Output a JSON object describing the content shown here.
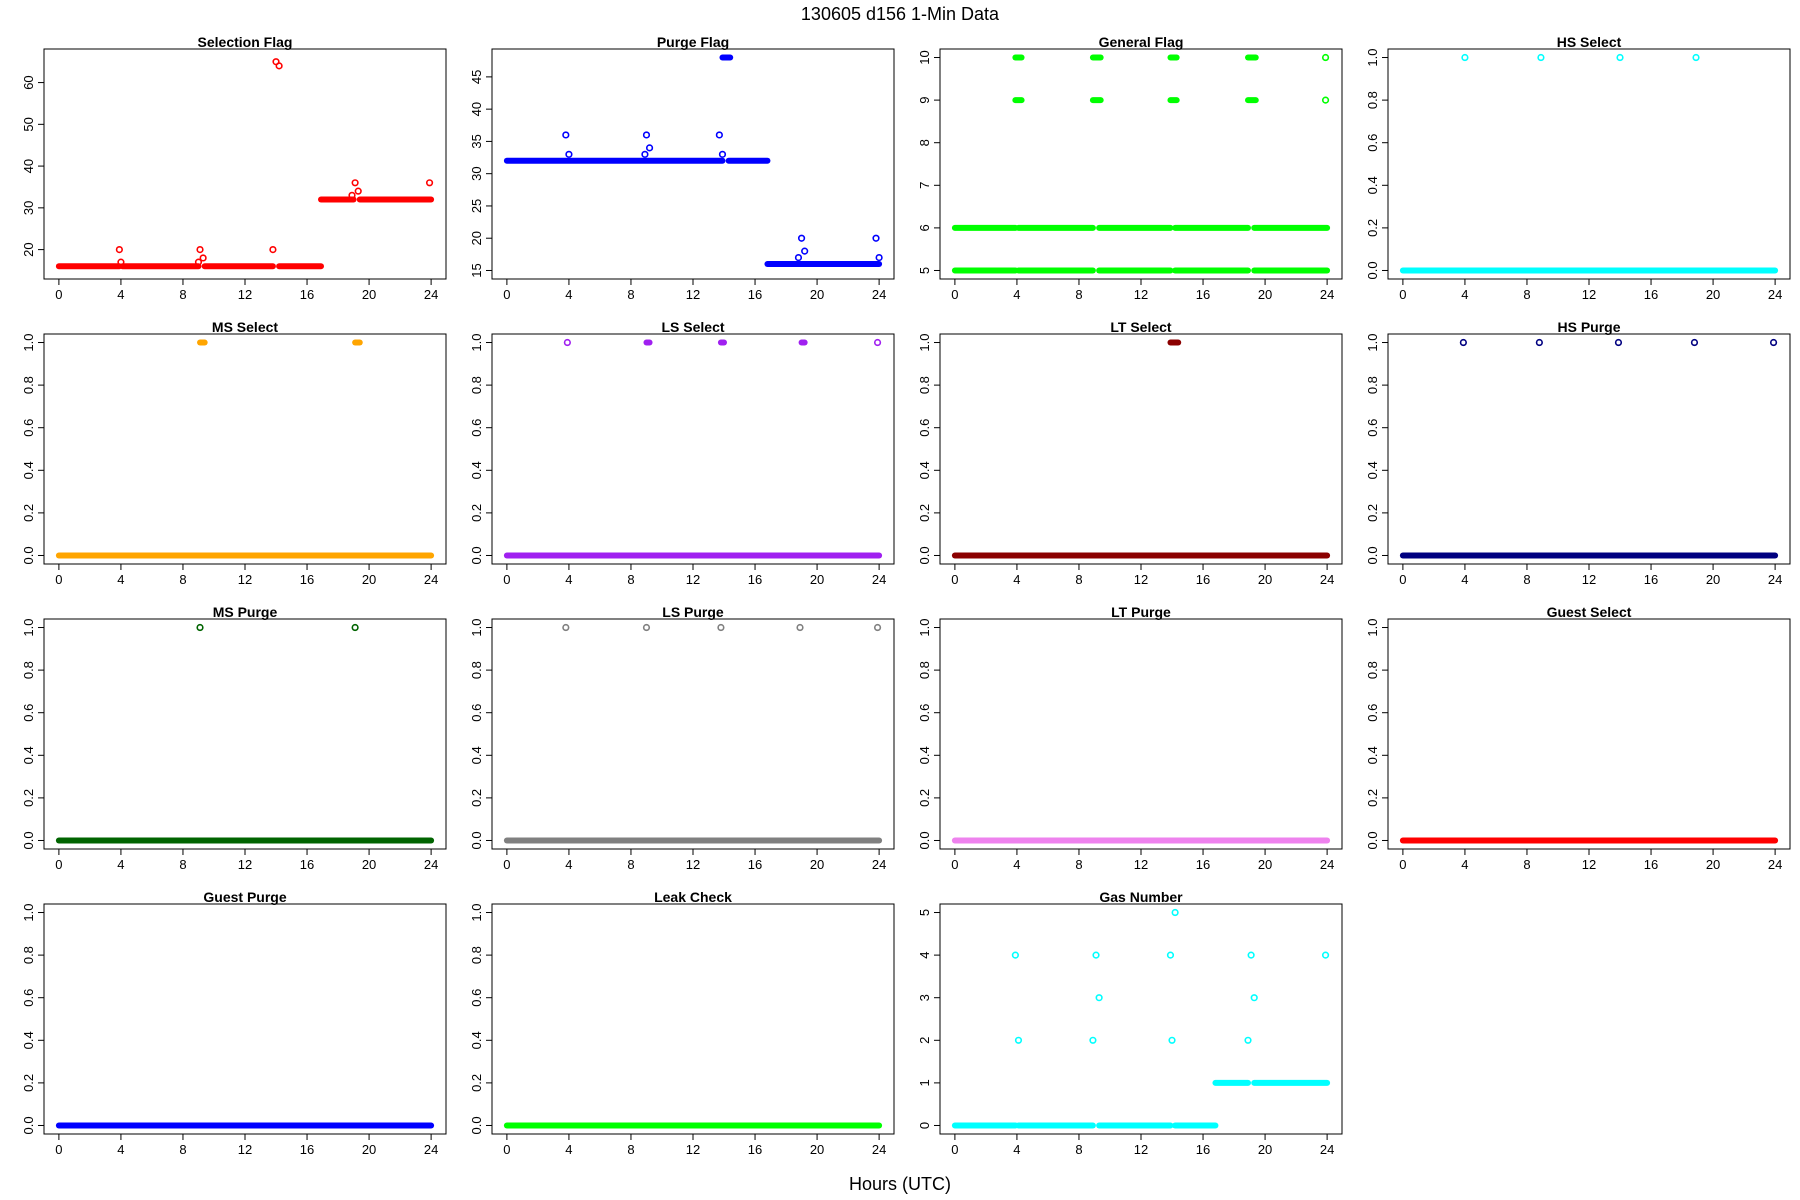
{
  "figure": {
    "title": "130605   d156   1-Min Data",
    "xlabel": "Hours (UTC)"
  },
  "chart_data": [
    {
      "type": "scatter",
      "title": "Selection Flag",
      "color": "#ff0000",
      "xlim": [
        0,
        24
      ],
      "ylim": [
        15,
        66
      ],
      "xticks": [
        0,
        4,
        8,
        12,
        16,
        20,
        24
      ],
      "yticks": [
        20,
        30,
        40,
        50,
        60
      ],
      "runs": [
        {
          "x0": 0,
          "x1": 3.9,
          "y": 16
        },
        {
          "x0": 4.1,
          "x1": 9.0,
          "y": 16
        },
        {
          "x0": 9.4,
          "x1": 13.8,
          "y": 16
        },
        {
          "x0": 14.2,
          "x1": 16.9,
          "y": 16
        },
        {
          "x0": 16.9,
          "x1": 19.0,
          "y": 32
        },
        {
          "x0": 19.4,
          "x1": 24,
          "y": 32
        }
      ],
      "points": [
        {
          "x": 3.9,
          "y": 20
        },
        {
          "x": 4.0,
          "y": 17
        },
        {
          "x": 9.0,
          "y": 17
        },
        {
          "x": 9.1,
          "y": 20
        },
        {
          "x": 9.3,
          "y": 18
        },
        {
          "x": 13.8,
          "y": 20
        },
        {
          "x": 14.0,
          "y": 65
        },
        {
          "x": 14.2,
          "y": 64
        },
        {
          "x": 18.9,
          "y": 33
        },
        {
          "x": 19.1,
          "y": 36
        },
        {
          "x": 19.3,
          "y": 34
        },
        {
          "x": 23.9,
          "y": 36
        }
      ]
    },
    {
      "type": "scatter",
      "title": "Purge Flag",
      "color": "#0000ff",
      "xlim": [
        0,
        24
      ],
      "ylim": [
        15,
        48
      ],
      "xticks": [
        0,
        4,
        8,
        12,
        16,
        20,
        24
      ],
      "yticks": [
        15,
        20,
        25,
        30,
        35,
        40,
        45
      ],
      "runs": [
        {
          "x0": 0,
          "x1": 13.9,
          "y": 32
        },
        {
          "x0": 14.3,
          "x1": 16.8,
          "y": 32
        },
        {
          "x0": 16.8,
          "x1": 24,
          "y": 16
        },
        {
          "x0": 13.9,
          "x1": 14.4,
          "y": 48
        }
      ],
      "points": [
        {
          "x": 3.8,
          "y": 36
        },
        {
          "x": 4.0,
          "y": 33
        },
        {
          "x": 8.9,
          "y": 33
        },
        {
          "x": 9.0,
          "y": 36
        },
        {
          "x": 9.2,
          "y": 34
        },
        {
          "x": 13.7,
          "y": 36
        },
        {
          "x": 13.9,
          "y": 33
        },
        {
          "x": 18.8,
          "y": 17
        },
        {
          "x": 19.0,
          "y": 20
        },
        {
          "x": 19.2,
          "y": 18
        },
        {
          "x": 23.8,
          "y": 20
        },
        {
          "x": 24.0,
          "y": 17
        }
      ]
    },
    {
      "type": "scatter",
      "title": "General Flag",
      "color": "#00ff00",
      "xlim": [
        0,
        24
      ],
      "ylim": [
        5,
        10
      ],
      "xticks": [
        0,
        4,
        8,
        12,
        16,
        20,
        24
      ],
      "yticks": [
        5,
        6,
        7,
        8,
        9,
        10
      ],
      "runs": [
        {
          "x0": 0,
          "x1": 3.9,
          "y": 6
        },
        {
          "x0": 4.1,
          "x1": 8.9,
          "y": 6
        },
        {
          "x0": 9.3,
          "x1": 13.9,
          "y": 6
        },
        {
          "x0": 14.2,
          "x1": 18.9,
          "y": 6
        },
        {
          "x0": 19.3,
          "x1": 24,
          "y": 6
        },
        {
          "x0": 0,
          "x1": 3.9,
          "y": 5
        },
        {
          "x0": 4.1,
          "x1": 8.9,
          "y": 5
        },
        {
          "x0": 9.3,
          "x1": 13.9,
          "y": 5
        },
        {
          "x0": 14.2,
          "x1": 18.9,
          "y": 5
        },
        {
          "x0": 19.3,
          "x1": 24,
          "y": 5
        },
        {
          "x0": 3.9,
          "x1": 4.3,
          "y": 10
        },
        {
          "x0": 8.9,
          "x1": 9.4,
          "y": 10
        },
        {
          "x0": 13.9,
          "x1": 14.3,
          "y": 10
        },
        {
          "x0": 18.9,
          "x1": 19.4,
          "y": 10
        },
        {
          "x0": 3.9,
          "x1": 4.3,
          "y": 9
        },
        {
          "x0": 8.9,
          "x1": 9.4,
          "y": 9
        },
        {
          "x0": 13.9,
          "x1": 14.3,
          "y": 9
        },
        {
          "x0": 18.9,
          "x1": 19.4,
          "y": 9
        }
      ],
      "points": [
        {
          "x": 23.9,
          "y": 10
        },
        {
          "x": 23.9,
          "y": 9
        }
      ]
    },
    {
      "type": "scatter",
      "title": "HS Select",
      "color": "#00ffff",
      "xlim": [
        0,
        24
      ],
      "ylim": [
        0,
        1
      ],
      "xticks": [
        0,
        4,
        8,
        12,
        16,
        20,
        24
      ],
      "yticks": [
        0.0,
        0.2,
        0.4,
        0.6,
        0.8,
        1.0
      ],
      "runs": [
        {
          "x0": 0,
          "x1": 24,
          "y": 0
        }
      ],
      "points": [
        {
          "x": 4.0,
          "y": 1
        },
        {
          "x": 8.9,
          "y": 1
        },
        {
          "x": 14.0,
          "y": 1
        },
        {
          "x": 18.9,
          "y": 1
        }
      ]
    },
    {
      "type": "scatter",
      "title": "MS Select",
      "color": "#ffa500",
      "xlim": [
        0,
        24
      ],
      "ylim": [
        0,
        1
      ],
      "xticks": [
        0,
        4,
        8,
        12,
        16,
        20,
        24
      ],
      "yticks": [
        0.0,
        0.2,
        0.4,
        0.6,
        0.8,
        1.0
      ],
      "runs": [
        {
          "x0": 0,
          "x1": 24,
          "y": 0
        },
        {
          "x0": 9.1,
          "x1": 9.4,
          "y": 1
        },
        {
          "x0": 19.1,
          "x1": 19.4,
          "y": 1
        }
      ],
      "points": []
    },
    {
      "type": "scatter",
      "title": "LS Select",
      "color": "#a020f0",
      "xlim": [
        0,
        24
      ],
      "ylim": [
        0,
        1
      ],
      "xticks": [
        0,
        4,
        8,
        12,
        16,
        20,
        24
      ],
      "yticks": [
        0.0,
        0.2,
        0.4,
        0.6,
        0.8,
        1.0
      ],
      "runs": [
        {
          "x0": 0,
          "x1": 24,
          "y": 0
        },
        {
          "x0": 9.0,
          "x1": 9.2,
          "y": 1
        },
        {
          "x0": 13.8,
          "x1": 14.0,
          "y": 1
        },
        {
          "x0": 19.0,
          "x1": 19.2,
          "y": 1
        }
      ],
      "points": [
        {
          "x": 3.9,
          "y": 1
        },
        {
          "x": 23.9,
          "y": 1
        }
      ]
    },
    {
      "type": "scatter",
      "title": "LT Select",
      "color": "#8b0000",
      "xlim": [
        0,
        24
      ],
      "ylim": [
        0,
        1
      ],
      "xticks": [
        0,
        4,
        8,
        12,
        16,
        20,
        24
      ],
      "yticks": [
        0.0,
        0.2,
        0.4,
        0.6,
        0.8,
        1.0
      ],
      "runs": [
        {
          "x0": 0,
          "x1": 24,
          "y": 0
        },
        {
          "x0": 13.9,
          "x1": 14.4,
          "y": 1
        }
      ],
      "points": []
    },
    {
      "type": "scatter",
      "title": "HS Purge",
      "color": "#000080",
      "xlim": [
        0,
        24
      ],
      "ylim": [
        0,
        1
      ],
      "xticks": [
        0,
        4,
        8,
        12,
        16,
        20,
        24
      ],
      "yticks": [
        0.0,
        0.2,
        0.4,
        0.6,
        0.8,
        1.0
      ],
      "runs": [
        {
          "x0": 0,
          "x1": 24,
          "y": 0
        }
      ],
      "points": [
        {
          "x": 3.9,
          "y": 1
        },
        {
          "x": 8.8,
          "y": 1
        },
        {
          "x": 13.9,
          "y": 1
        },
        {
          "x": 18.8,
          "y": 1
        },
        {
          "x": 23.9,
          "y": 1
        }
      ]
    },
    {
      "type": "scatter",
      "title": "MS Purge",
      "color": "#006400",
      "xlim": [
        0,
        24
      ],
      "ylim": [
        0,
        1
      ],
      "xticks": [
        0,
        4,
        8,
        12,
        16,
        20,
        24
      ],
      "yticks": [
        0.0,
        0.2,
        0.4,
        0.6,
        0.8,
        1.0
      ],
      "runs": [
        {
          "x0": 0,
          "x1": 24,
          "y": 0
        }
      ],
      "points": [
        {
          "x": 9.1,
          "y": 1
        },
        {
          "x": 19.1,
          "y": 1
        }
      ]
    },
    {
      "type": "scatter",
      "title": "LS Purge",
      "color": "#808080",
      "xlim": [
        0,
        24
      ],
      "ylim": [
        0,
        1
      ],
      "xticks": [
        0,
        4,
        8,
        12,
        16,
        20,
        24
      ],
      "yticks": [
        0.0,
        0.2,
        0.4,
        0.6,
        0.8,
        1.0
      ],
      "runs": [
        {
          "x0": 0,
          "x1": 24,
          "y": 0
        }
      ],
      "points": [
        {
          "x": 3.8,
          "y": 1
        },
        {
          "x": 9.0,
          "y": 1
        },
        {
          "x": 13.8,
          "y": 1
        },
        {
          "x": 18.9,
          "y": 1
        },
        {
          "x": 23.9,
          "y": 1
        }
      ]
    },
    {
      "type": "scatter",
      "title": "LT Purge",
      "color": "#ee82ee",
      "xlim": [
        0,
        24
      ],
      "ylim": [
        0,
        1
      ],
      "xticks": [
        0,
        4,
        8,
        12,
        16,
        20,
        24
      ],
      "yticks": [
        0.0,
        0.2,
        0.4,
        0.6,
        0.8,
        1.0
      ],
      "runs": [
        {
          "x0": 0,
          "x1": 24,
          "y": 0
        }
      ],
      "points": []
    },
    {
      "type": "scatter",
      "title": "Guest Select",
      "color": "#ff0000",
      "xlim": [
        0,
        24
      ],
      "ylim": [
        0,
        1
      ],
      "xticks": [
        0,
        4,
        8,
        12,
        16,
        20,
        24
      ],
      "yticks": [
        0.0,
        0.2,
        0.4,
        0.6,
        0.8,
        1.0
      ],
      "runs": [
        {
          "x0": 0,
          "x1": 24,
          "y": 0
        }
      ],
      "points": []
    },
    {
      "type": "scatter",
      "title": "Guest Purge",
      "color": "#0000ff",
      "xlim": [
        0,
        24
      ],
      "ylim": [
        0,
        1
      ],
      "xticks": [
        0,
        4,
        8,
        12,
        16,
        20,
        24
      ],
      "yticks": [
        0.0,
        0.2,
        0.4,
        0.6,
        0.8,
        1.0
      ],
      "runs": [
        {
          "x0": 0,
          "x1": 24,
          "y": 0
        }
      ],
      "points": []
    },
    {
      "type": "scatter",
      "title": "Leak Check",
      "color": "#00ff00",
      "xlim": [
        0,
        24
      ],
      "ylim": [
        0,
        1
      ],
      "xticks": [
        0,
        4,
        8,
        12,
        16,
        20,
        24
      ],
      "yticks": [
        0.0,
        0.2,
        0.4,
        0.6,
        0.8,
        1.0
      ],
      "runs": [
        {
          "x0": 0,
          "x1": 24,
          "y": 0
        }
      ],
      "points": []
    },
    {
      "type": "scatter",
      "title": "Gas Number",
      "color": "#00ffff",
      "xlim": [
        0,
        24
      ],
      "ylim": [
        0,
        5
      ],
      "xticks": [
        0,
        4,
        8,
        12,
        16,
        20,
        24
      ],
      "yticks": [
        0,
        1,
        2,
        3,
        4,
        5
      ],
      "runs": [
        {
          "x0": 0,
          "x1": 3.9,
          "y": 0
        },
        {
          "x0": 4.1,
          "x1": 8.9,
          "y": 0
        },
        {
          "x0": 9.3,
          "x1": 13.9,
          "y": 0
        },
        {
          "x0": 14.2,
          "x1": 16.8,
          "y": 0
        },
        {
          "x0": 16.8,
          "x1": 18.9,
          "y": 1
        },
        {
          "x0": 19.3,
          "x1": 24,
          "y": 1
        }
      ],
      "points": [
        {
          "x": 3.9,
          "y": 4
        },
        {
          "x": 4.1,
          "y": 2
        },
        {
          "x": 8.9,
          "y": 2
        },
        {
          "x": 9.1,
          "y": 4
        },
        {
          "x": 9.3,
          "y": 3
        },
        {
          "x": 13.9,
          "y": 4
        },
        {
          "x": 14.0,
          "y": 2
        },
        {
          "x": 14.2,
          "y": 5
        },
        {
          "x": 18.9,
          "y": 2
        },
        {
          "x": 19.1,
          "y": 4
        },
        {
          "x": 19.3,
          "y": 3
        },
        {
          "x": 23.9,
          "y": 4
        }
      ]
    }
  ]
}
